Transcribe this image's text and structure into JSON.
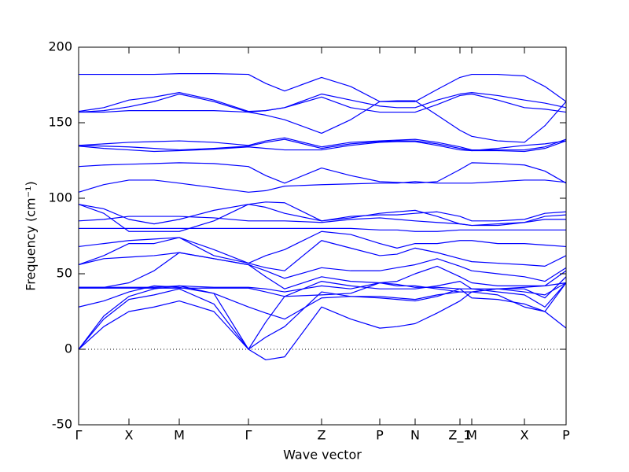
{
  "chart_data": {
    "type": "line",
    "xlabel": "Wave vector",
    "ylabel": "Frequency (cm⁻¹)",
    "color": "#0000ff",
    "xlim": [
      0,
      620
    ],
    "ylim": [
      -50,
      200
    ],
    "yticks": [
      -50,
      0,
      50,
      100,
      150,
      200
    ],
    "xticks": [
      {
        "value": 0,
        "label": "Γ"
      },
      {
        "value": 64,
        "label": "X"
      },
      {
        "value": 128,
        "label": "M"
      },
      {
        "value": 216,
        "label": "Γ"
      },
      {
        "value": 309,
        "label": "Z"
      },
      {
        "value": 383,
        "label": "P"
      },
      {
        "value": 428,
        "label": "N"
      },
      {
        "value": 485,
        "label": "Z_1"
      },
      {
        "value": 500,
        "label": "M"
      },
      {
        "value": 567,
        "label": "X"
      },
      {
        "value": 620,
        "label": "P"
      }
    ],
    "reference_line": 0,
    "x": [
      0,
      32,
      64,
      96,
      128,
      172,
      216,
      238,
      262,
      309,
      346,
      383,
      405,
      428,
      456,
      485,
      500,
      533,
      567,
      593,
      620
    ],
    "series": [
      {
        "values": [
          182,
          182,
          182,
          182,
          182.5,
          182.5,
          182,
          176,
          171,
          180,
          174,
          164,
          164,
          164,
          172,
          180,
          182,
          182,
          181,
          174,
          164
        ]
      },
      {
        "values": [
          157.5,
          160,
          165,
          167,
          170,
          165,
          157.5,
          158,
          160,
          169,
          165,
          161,
          160,
          160,
          165,
          169,
          170,
          168,
          165,
          163,
          160
        ]
      },
      {
        "values": [
          157,
          158,
          160.5,
          164,
          169,
          164,
          157,
          155,
          152,
          143,
          152,
          164,
          164.5,
          164.5,
          155,
          145,
          141,
          138,
          137,
          148,
          164
        ]
      },
      {
        "values": [
          157,
          157,
          158,
          158,
          158,
          158,
          157,
          158,
          160,
          167,
          160,
          157,
          157,
          157,
          162,
          168,
          169,
          165,
          160,
          159,
          157
        ]
      },
      {
        "values": [
          135,
          136,
          137,
          137.5,
          138,
          137,
          135,
          138,
          140,
          134,
          137,
          138,
          138.5,
          139,
          137,
          134,
          132,
          132,
          132,
          134,
          139
        ]
      },
      {
        "values": [
          135,
          134.5,
          134,
          133,
          132,
          133,
          134.5,
          137,
          139,
          133,
          136,
          137.5,
          138,
          138,
          136,
          133,
          131.5,
          131.5,
          131,
          133,
          138
        ]
      },
      {
        "values": [
          134.5,
          133,
          132,
          131,
          131.5,
          132.5,
          134,
          133,
          132,
          132,
          135,
          137,
          137.5,
          137.5,
          135,
          132,
          131.5,
          133,
          135,
          136,
          138
        ]
      },
      {
        "values": [
          121,
          122,
          122.5,
          123,
          123.5,
          123,
          121,
          115,
          110,
          120,
          115,
          111,
          110.5,
          110,
          111,
          119,
          123.5,
          123,
          122,
          118,
          110
        ]
      },
      {
        "values": [
          104,
          109,
          112,
          112,
          110,
          107,
          104,
          105,
          108,
          109,
          109.5,
          110,
          110,
          111,
          110,
          110,
          110,
          111,
          112,
          112,
          110.5
        ]
      },
      {
        "values": [
          96,
          93,
          86,
          83,
          86,
          92,
          96,
          97.5,
          97,
          85,
          88,
          89,
          89,
          90,
          91,
          88,
          85,
          85,
          86,
          90,
          91
        ]
      },
      {
        "values": [
          96,
          90,
          78,
          78,
          78,
          85,
          96,
          94,
          90,
          85,
          87,
          90,
          91,
          92,
          88,
          83,
          82,
          82,
          84,
          88,
          89
        ]
      },
      {
        "values": [
          85,
          86,
          88,
          88,
          88,
          87,
          85,
          85,
          85,
          84,
          86,
          87,
          86,
          85,
          84,
          83,
          82,
          83,
          84,
          86,
          86
        ]
      },
      {
        "values": [
          80,
          80,
          80,
          80,
          80,
          80,
          80,
          80,
          80,
          80,
          80,
          79,
          79,
          78,
          78,
          79,
          79,
          79,
          79,
          79,
          79
        ]
      },
      {
        "values": [
          68,
          70,
          72,
          73,
          74,
          66,
          57,
          62,
          66,
          78,
          76,
          70,
          67,
          70,
          70,
          72,
          72,
          70,
          70,
          69,
          68
        ]
      },
      {
        "values": [
          56,
          62,
          70,
          70,
          74,
          62,
          57,
          54,
          52,
          72,
          67,
          62,
          63,
          67,
          64,
          60,
          58,
          57,
          56,
          55,
          62
        ]
      },
      {
        "values": [
          56,
          60,
          61,
          62,
          64,
          60,
          56,
          52,
          47,
          54,
          52,
          52,
          54,
          56,
          60,
          55,
          52,
          50,
          48,
          45,
          54
        ]
      },
      {
        "values": [
          41,
          41,
          44,
          52,
          64,
          60,
          56,
          48,
          40,
          48,
          45,
          44,
          45,
          50,
          55,
          48,
          44,
          42,
          42,
          42,
          52
        ]
      },
      {
        "values": [
          41,
          41,
          41,
          41,
          42,
          41,
          41,
          40,
          38,
          42,
          40,
          44,
          42,
          42,
          40,
          38,
          38,
          40,
          41,
          42,
          44
        ]
      },
      {
        "values": [
          40.5,
          40.5,
          40.5,
          40.5,
          40.5,
          40.5,
          40.5,
          38,
          35,
          36,
          37,
          44,
          43,
          41,
          41,
          40,
          40,
          40,
          38,
          36,
          44
        ]
      },
      {
        "values": [
          28,
          32,
          38,
          42,
          41,
          37,
          28,
          24,
          20,
          34,
          35,
          35,
          34,
          33,
          36,
          38,
          38,
          40,
          40,
          34,
          48
        ]
      },
      {
        "values": [
          0,
          22,
          35,
          40,
          42,
          37,
          0,
          18,
          35,
          45,
          42,
          40,
          40,
          40,
          42,
          45,
          40,
          38,
          36,
          28,
          44
        ]
      },
      {
        "values": [
          0,
          20,
          33,
          36,
          40,
          30,
          0,
          8,
          15,
          38,
          35,
          34,
          33,
          32,
          35,
          40,
          34,
          33,
          30,
          25,
          44
        ]
      },
      {
        "values": [
          0,
          15,
          25,
          28,
          32,
          25,
          0,
          -7,
          -5,
          28,
          20,
          14,
          15,
          17,
          24,
          32,
          38,
          36,
          28,
          25,
          14
        ]
      }
    ]
  }
}
